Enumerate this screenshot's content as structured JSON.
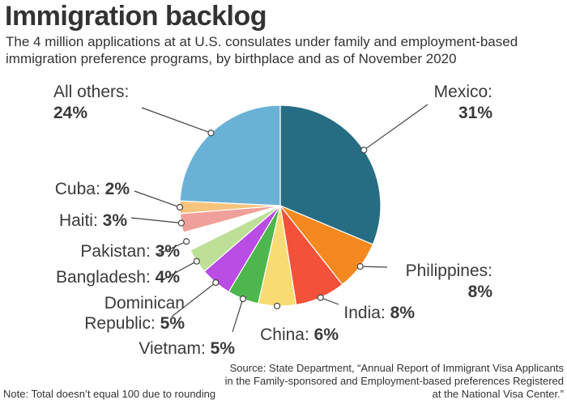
{
  "header": {
    "title": "Immigration backlog",
    "subtitle": "The 4 million applications at at U.S. consulates under family and employment-based immigration preference programs, by birthplace and as of November 2020"
  },
  "footer": {
    "note": "Note: Total doesn’t equal 100 due to rounding",
    "source": "Source: State Department, “Annual Report of Immigrant Visa Applicants in the Family-sponsored and Employment-based preferences Registered at the National Visa Center.”"
  },
  "chart_data": {
    "type": "pie",
    "title": "Immigration backlog",
    "start": "12 o'clock, clockwise",
    "slices": [
      {
        "name": "Mexico",
        "value": 31,
        "label": "31%",
        "color": "#266d84"
      },
      {
        "name": "Philippines",
        "value": 8,
        "label": "8%",
        "color": "#f5891f"
      },
      {
        "name": "India",
        "value": 8,
        "label": "8%",
        "color": "#f4513a"
      },
      {
        "name": "China",
        "value": 6,
        "label": "6%",
        "color": "#f8dc73"
      },
      {
        "name": "Vietnam",
        "value": 5,
        "label": "5%",
        "color": "#4db64c"
      },
      {
        "name": "Dominican Republic",
        "value": 5,
        "label": "5%",
        "color": "#b84ce3",
        "lines": [
          "Dominican",
          "Republic:"
        ]
      },
      {
        "name": "Bangladesh",
        "value": 4,
        "label": "4%",
        "color": "#bde096"
      },
      {
        "name": "Pakistan",
        "value": 3,
        "label": "3%",
        "color": "#ffffff"
      },
      {
        "name": "Haiti",
        "value": 3,
        "label": "3%",
        "color": "#f0a09a"
      },
      {
        "name": "Cuba",
        "value": 2,
        "label": "2%",
        "color": "#f7c47e"
      },
      {
        "name": "All others",
        "value": 24,
        "label": "24%",
        "color": "#6ab1d6"
      }
    ],
    "note": "Total doesn’t equal 100 due to rounding"
  }
}
